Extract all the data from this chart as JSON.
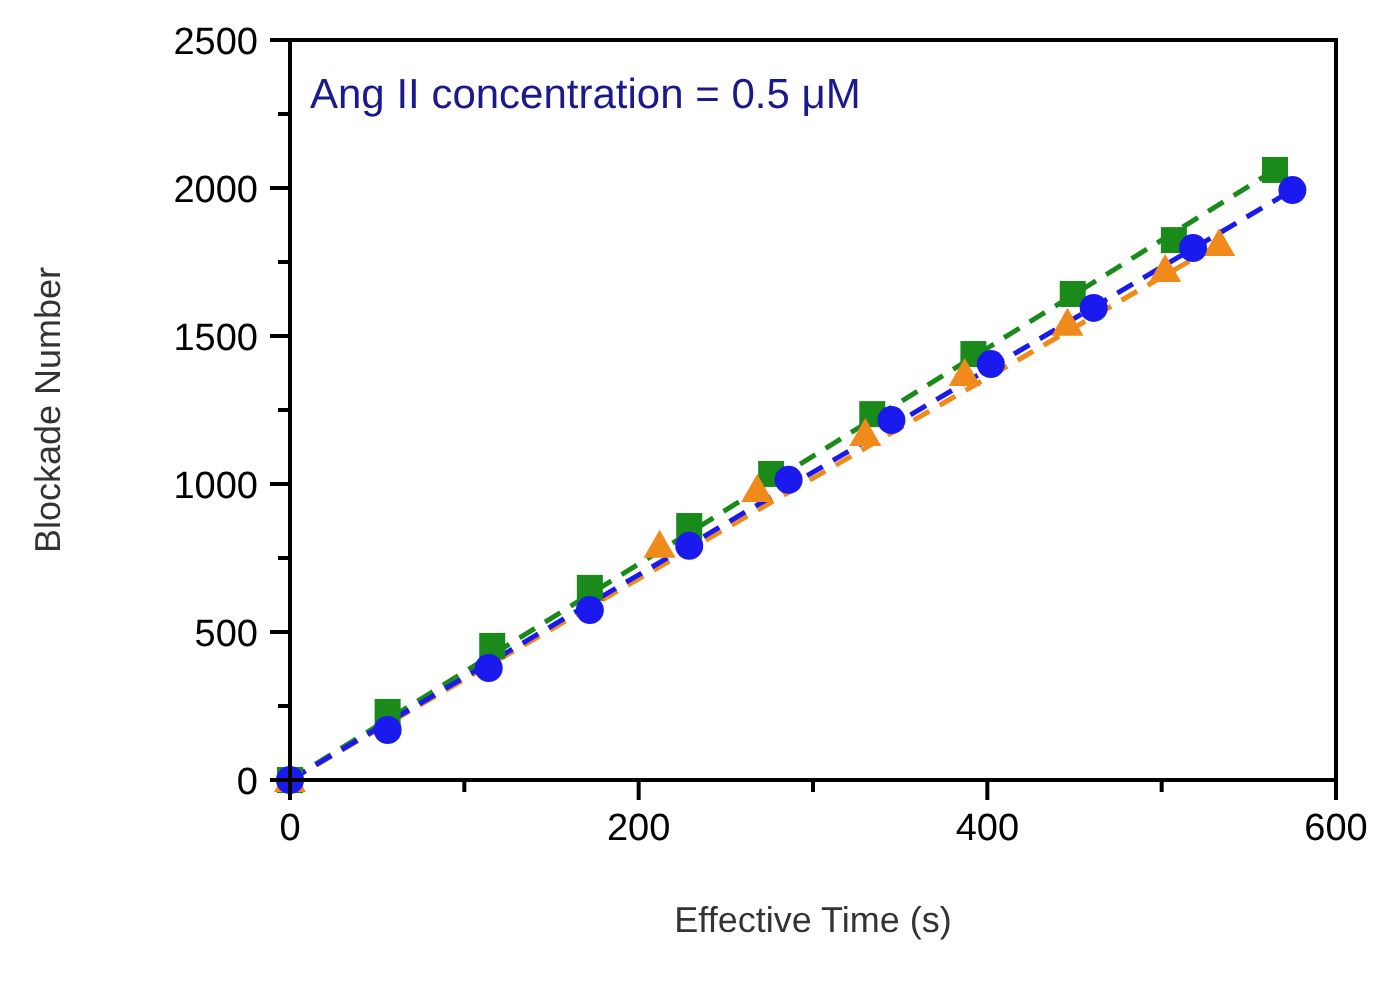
{
  "chart_data": {
    "type": "scatter",
    "xlabel": "Effective Time (s)",
    "ylabel": "Blockade Number",
    "annotations": [
      "Ang II concentration = 0.5 μM"
    ],
    "xlim": [
      0,
      600
    ],
    "ylim": [
      0,
      2500
    ],
    "xticks": [
      0,
      {
        "value": 100,
        "label": null
      },
      200,
      {
        "value": 300,
        "label": null
      },
      400,
      {
        "value": 500,
        "label": null
      },
      600
    ],
    "yticks": [
      0,
      {
        "value": 250,
        "label": null
      },
      500,
      {
        "value": 750,
        "label": null
      },
      1000,
      {
        "value": 1250,
        "label": null
      },
      1500,
      {
        "value": 1750,
        "label": null
      },
      2000,
      {
        "value": 2250,
        "label": null
      },
      2500
    ],
    "grid": false,
    "series": [
      {
        "type": "line",
        "color": "#1a8a1a",
        "line_style": "dashed",
        "marker": "none",
        "x": [
          0,
          565
        ],
        "values": [
          0,
          2061
        ]
      },
      {
        "type": "line",
        "color": "#f08a1a",
        "line_style": "dashed",
        "marker": "none",
        "x": [
          0,
          533
        ],
        "values": [
          0,
          1811
        ]
      },
      {
        "type": "line",
        "color": "#1a1aee",
        "line_style": "dashed",
        "marker": "none",
        "x": [
          0,
          575
        ],
        "values": [
          0,
          1993
        ]
      },
      {
        "color": "#1a8a1a",
        "marker": "square",
        "x": [
          0,
          56,
          116,
          172,
          229,
          276,
          334,
          392,
          449,
          507,
          565
        ],
        "values": [
          0,
          230,
          453,
          649,
          858,
          1034,
          1236,
          1439,
          1642,
          1824,
          2061
        ]
      },
      {
        "color": "#f08a1a",
        "marker": "triangle",
        "x": [
          0,
          212,
          268,
          330,
          387,
          446,
          502,
          533
        ],
        "values": [
          0,
          791,
          980,
          1169,
          1372,
          1541,
          1723,
          1811
        ]
      },
      {
        "color": "#1a1aee",
        "marker": "circle",
        "x": [
          0,
          56,
          114,
          172,
          229,
          286,
          345,
          402,
          461,
          518,
          575
        ],
        "values": [
          0,
          169,
          378,
          574,
          791,
          1014,
          1216,
          1405,
          1595,
          1797,
          1993
        ]
      }
    ]
  }
}
